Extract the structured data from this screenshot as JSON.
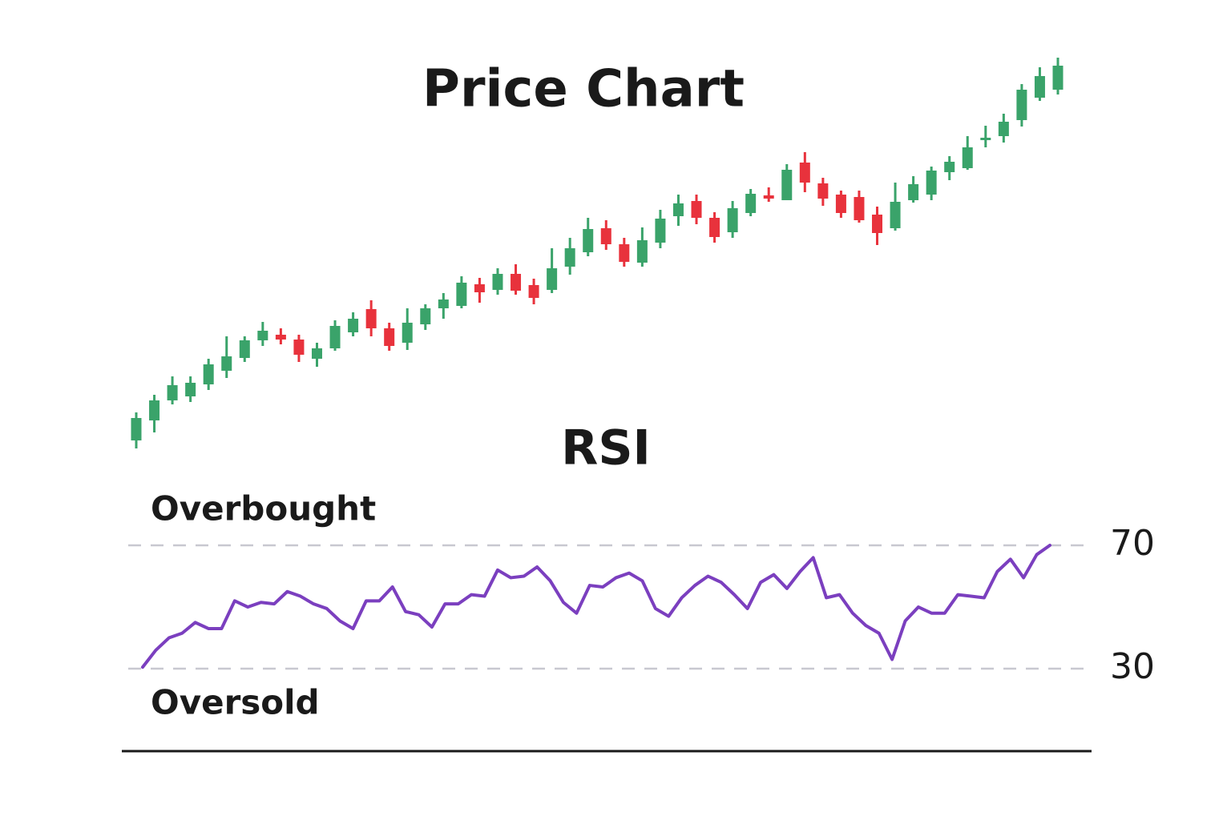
{
  "chart_data": [
    {
      "type": "candlestick",
      "title": "Price Chart",
      "open": [
        50,
        75,
        100,
        105,
        120,
        137,
        153,
        175,
        182,
        176,
        152,
        165,
        185,
        214,
        190,
        172,
        195,
        215,
        218,
        245,
        238,
        258,
        244,
        238,
        267,
        285,
        315,
        295,
        272,
        297,
        330,
        349,
        328,
        310,
        334,
        356,
        350,
        397,
        371,
        357,
        354,
        332,
        315,
        350,
        357,
        385,
        390,
        425,
        430,
        450,
        478,
        488
      ],
      "high": [
        85,
        107,
        130,
        130,
        152,
        180,
        180,
        198,
        190,
        182,
        172,
        200,
        210,
        225,
        197,
        215,
        220,
        234,
        255,
        253,
        265,
        270,
        252,
        290,
        303,
        328,
        325,
        303,
        316,
        338,
        357,
        357,
        335,
        349,
        364,
        366,
        395,
        410,
        378,
        362,
        362,
        342,
        372,
        380,
        392,
        405,
        430,
        443,
        458,
        495,
        516,
        528
      ],
      "low": [
        40,
        60,
        95,
        98,
        113,
        128,
        148,
        168,
        170,
        148,
        142,
        162,
        180,
        180,
        162,
        163,
        188,
        202,
        215,
        222,
        232,
        232,
        220,
        234,
        257,
        280,
        288,
        267,
        267,
        290,
        318,
        320,
        297,
        303,
        330,
        348,
        350,
        360,
        343,
        328,
        322,
        294,
        312,
        347,
        350,
        375,
        388,
        416,
        422,
        442,
        474,
        482
      ],
      "close": [
        78,
        100,
        119,
        122,
        145,
        155,
        175,
        187,
        176,
        157,
        165,
        193,
        202,
        190,
        168,
        197,
        215,
        226,
        247,
        235,
        258,
        237,
        228,
        265,
        290,
        314,
        295,
        273,
        300,
        327,
        346,
        328,
        304,
        340,
        358,
        352,
        388,
        372,
        352,
        334,
        325,
        309,
        348,
        370,
        387,
        398,
        416,
        428,
        448,
        488,
        505,
        518
      ],
      "up_color": "#3aa36a",
      "down_color": "#e8323c",
      "ylim": [
        20,
        570
      ]
    },
    {
      "type": "line",
      "title": "RSI",
      "values": [
        30.5,
        36,
        40,
        41.5,
        45,
        43,
        43,
        52,
        50,
        51.5,
        51,
        55,
        53.5,
        51,
        49.5,
        45.5,
        43,
        52,
        52,
        56.5,
        48.5,
        47.5,
        43.5,
        51,
        51,
        54,
        53.5,
        62,
        59.5,
        60,
        63,
        58.5,
        51.5,
        48,
        57,
        56.5,
        59.5,
        61,
        58.5,
        49.5,
        47,
        53,
        57,
        60,
        58,
        54,
        49.5,
        58,
        60.5,
        56,
        61.5,
        66,
        53,
        54,
        48,
        44,
        41.5,
        33,
        45.5,
        50,
        48,
        48,
        54,
        53.5,
        53,
        61.5,
        65.5,
        59.5,
        67,
        70
      ],
      "color": "#7b3fbf",
      "ylim": [
        3,
        80
      ],
      "yticks": [
        30,
        70
      ],
      "grid": true,
      "annotations": [
        "Overbought",
        "Oversold"
      ]
    }
  ]
}
